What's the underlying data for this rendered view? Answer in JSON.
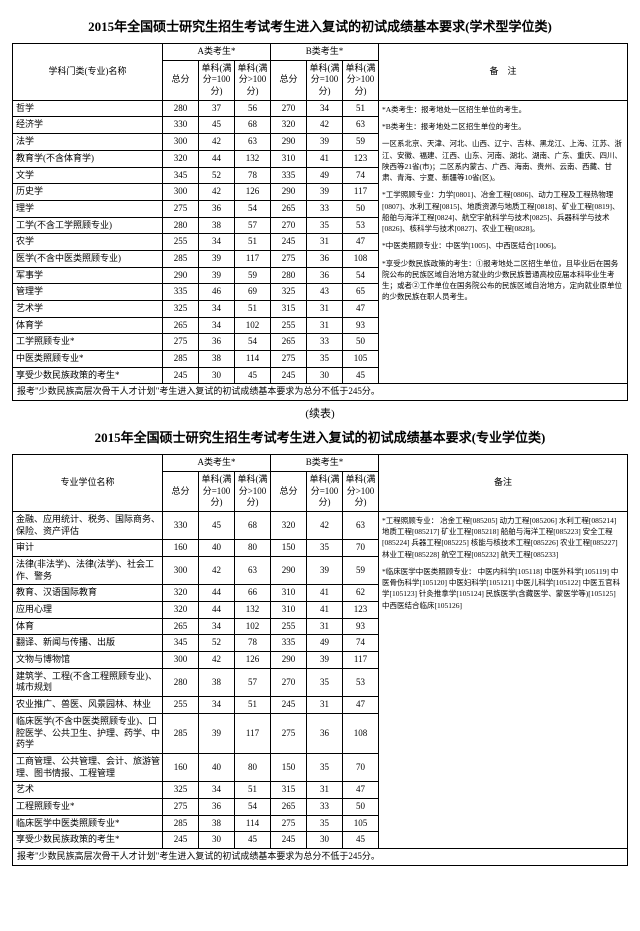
{
  "table1": {
    "title": "2015年全国硕士研究生招生考试考生进入复试的初试成绩基本要求(学术型学位类)",
    "headers": {
      "name": "学科门类(专业)名称",
      "catA": "A类考生*",
      "catB": "B类考生*",
      "total": "总分",
      "sub100": "单科(满分=100分)",
      "subOver": "单科(满分>100分)",
      "notes": "备　注"
    },
    "rows": [
      {
        "name": "哲学",
        "a": [
          280,
          37,
          56
        ],
        "b": [
          270,
          34,
          51
        ]
      },
      {
        "name": "经济学",
        "a": [
          330,
          45,
          68
        ],
        "b": [
          320,
          42,
          63
        ]
      },
      {
        "name": "法学",
        "a": [
          300,
          42,
          63
        ],
        "b": [
          290,
          39,
          59
        ]
      },
      {
        "name": "教育学(不含体育学)",
        "a": [
          320,
          44,
          132
        ],
        "b": [
          310,
          41,
          123
        ]
      },
      {
        "name": "文学",
        "a": [
          345,
          52,
          78
        ],
        "b": [
          335,
          49,
          74
        ]
      },
      {
        "name": "历史学",
        "a": [
          300,
          42,
          126
        ],
        "b": [
          290,
          39,
          117
        ]
      },
      {
        "name": "理学",
        "a": [
          275,
          36,
          54
        ],
        "b": [
          265,
          33,
          50
        ]
      },
      {
        "name": "工学(不含工学照顾专业)",
        "a": [
          280,
          38,
          57
        ],
        "b": [
          270,
          35,
          53
        ]
      },
      {
        "name": "农学",
        "a": [
          255,
          34,
          51
        ],
        "b": [
          245,
          31,
          47
        ]
      },
      {
        "name": "医学(不含中医类照顾专业)",
        "a": [
          285,
          39,
          117
        ],
        "b": [
          275,
          36,
          108
        ]
      },
      {
        "name": "军事学",
        "a": [
          290,
          39,
          59
        ],
        "b": [
          280,
          36,
          54
        ]
      },
      {
        "name": "管理学",
        "a": [
          335,
          46,
          69
        ],
        "b": [
          325,
          43,
          65
        ]
      },
      {
        "name": "艺术学",
        "a": [
          325,
          34,
          51
        ],
        "b": [
          315,
          31,
          47
        ]
      },
      {
        "name": "体育学",
        "a": [
          265,
          34,
          102
        ],
        "b": [
          255,
          31,
          93
        ]
      },
      {
        "name": "工学照顾专业*",
        "a": [
          275,
          36,
          54
        ],
        "b": [
          265,
          33,
          50
        ]
      },
      {
        "name": "中医类照顾专业*",
        "a": [
          285,
          38,
          114
        ],
        "b": [
          275,
          35,
          105
        ]
      },
      {
        "name": "享受少数民族政策的考生*",
        "a": [
          245,
          30,
          45
        ],
        "b": [
          245,
          30,
          45
        ]
      }
    ],
    "footer": "报考\"少数民族高层次骨干人才计划\"考生进入复试的初试成绩基本要求为总分不低于245分。",
    "notes": [
      "*A类考生：报考地处一区招生单位的考生。",
      "*B类考生：报考地处二区招生单位的考生。",
      "一区系北京、天津、河北、山西、辽宁、吉林、黑龙江、上海、江苏、浙江、安徽、福建、江西、山东、河南、湖北、湖南、广东、重庆、四川、陕西等21省(市)；二区系内蒙古、广西、海南、贵州、云南、西藏、甘肃、青海、宁夏、新疆等10省(区)。",
      "*工学照顾专业：力学[0801]、冶金工程[0806]、动力工程及工程热物理[0807]、水利工程[0815]、地质资源与地质工程[0818]、矿业工程[0819]、船舶与海洋工程[0824]、航空宇航科学与技术[0825]、兵器科学与技术[0826]、核科学与技术[0827]、农业工程[0828]。",
      "*中医类照顾专业：中医学[1005]、中西医结合[1006]。",
      "*享受少数民族政策的考生：①报考地处二区招生单位，且毕业后在国务院公布的民族区域自治地方就业的少数民族普通高校应届本科毕业生考生；或者②工作单位在国务院公布的民族区域自治地方，定向就业原单位的少数民族在职人员考生。"
    ]
  },
  "continue": "(续表)",
  "table2": {
    "title": "2015年全国硕士研究生招生考试考生进入复试的初试成绩基本要求(专业学位类)",
    "headers": {
      "name": "专业学位名称",
      "catA": "A类考生*",
      "catB": "B类考生*",
      "total": "总分",
      "sub100": "单科(满分=100分)",
      "subOver": "单科(满分>100分)",
      "notes": "备注"
    },
    "rows": [
      {
        "name": "金融、应用统计、税务、国际商务、保险、资产评估",
        "a": [
          330,
          45,
          68
        ],
        "b": [
          320,
          42,
          63
        ]
      },
      {
        "name": "审计",
        "a": [
          160,
          40,
          80
        ],
        "b": [
          150,
          35,
          70
        ]
      },
      {
        "name": "法律(非法学)、法律(法学)、社会工作、警务",
        "a": [
          300,
          42,
          63
        ],
        "b": [
          290,
          39,
          59
        ]
      },
      {
        "name": "教育、汉语国际教育",
        "a": [
          320,
          44,
          66
        ],
        "b": [
          310,
          41,
          62
        ]
      },
      {
        "name": "应用心理",
        "a": [
          320,
          44,
          132
        ],
        "b": [
          310,
          41,
          123
        ]
      },
      {
        "name": "体育",
        "a": [
          265,
          34,
          102
        ],
        "b": [
          255,
          31,
          93
        ]
      },
      {
        "name": "翻译、新闻与传播、出版",
        "a": [
          345,
          52,
          78
        ],
        "b": [
          335,
          49,
          74
        ]
      },
      {
        "name": "文物与博物馆",
        "a": [
          300,
          42,
          126
        ],
        "b": [
          290,
          39,
          117
        ]
      },
      {
        "name": "建筑学、工程(不含工程照顾专业)、城市规划",
        "a": [
          280,
          38,
          57
        ],
        "b": [
          270,
          35,
          53
        ]
      },
      {
        "name": "农业推广、兽医、风景园林、林业",
        "a": [
          255,
          34,
          51
        ],
        "b": [
          245,
          31,
          47
        ]
      },
      {
        "name": "临床医学(不含中医类照顾专业)、口腔医学、公共卫生、护理、药学、中药学",
        "a": [
          285,
          39,
          117
        ],
        "b": [
          275,
          36,
          108
        ]
      },
      {
        "name": "工商管理、公共管理、会计、旅游管理、图书情报、工程管理",
        "a": [
          160,
          40,
          80
        ],
        "b": [
          150,
          35,
          70
        ]
      },
      {
        "name": "艺术",
        "a": [
          325,
          34,
          51
        ],
        "b": [
          315,
          31,
          47
        ]
      },
      {
        "name": "工程照顾专业*",
        "a": [
          275,
          36,
          54
        ],
        "b": [
          265,
          33,
          50
        ]
      },
      {
        "name": "临床医学中医类照顾专业*",
        "a": [
          285,
          38,
          114
        ],
        "b": [
          275,
          35,
          105
        ]
      },
      {
        "name": "享受少数民族政策的考生*",
        "a": [
          245,
          30,
          45
        ],
        "b": [
          245,
          30,
          45
        ]
      }
    ],
    "footer": "报考\"少数民族高层次骨干人才计划\"考生进入复试的初试成绩基本要求为总分不低于245分。",
    "notes": [
      "*工程照顾专业：\n冶金工程[085205]\n动力工程[085206]\n水利工程[085214]\n地质工程[085217]\n矿业工程[085218]\n船舶与海洋工程[085223]\n安全工程[085224]\n兵器工程[085225]\n核能与核技术工程[085226]\n农业工程[085227]\n林业工程[085228]\n航空工程[085232]\n航天工程[085233]",
      "*临床医学中医类照顾专业：\n中医内科学[105118]\n中医外科学[105119]\n中医骨伤科学[105120]\n中医妇科学[105121]\n中医儿科学[105122]\n中医五官科学[105123]\n针灸推拿学[105124]\n民族医学(含藏医学、蒙医学等)[105125]\n中西医结合临床[105126]"
    ]
  }
}
